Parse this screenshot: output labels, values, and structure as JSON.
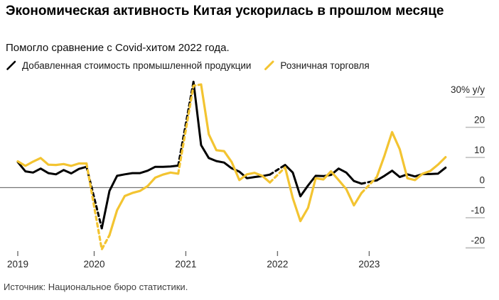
{
  "title": "Экономическая активность Китая ускорилась в прошлом месяце",
  "subtitle": "Помогло сравнение с Covid-хитом 2022 года.",
  "source": "Источник: Национальное бюро статистики.",
  "legend": [
    {
      "label": "Добавленная стоимость промышленной продукции",
      "color": "#000000"
    },
    {
      "label": "Розничная торговля",
      "color": "#F3C431"
    }
  ],
  "y_axis": {
    "top_label": "30% y/y",
    "ticks": [
      30,
      20,
      10,
      0,
      -10,
      -20
    ]
  },
  "x_axis": {
    "years": [
      2019,
      2020,
      2021,
      2022,
      2023
    ]
  },
  "colors": {
    "zero_line": "#757575",
    "tick_line": "#bbbbbb",
    "x_tick": "#6e6e6e",
    "axis_text": "#262626"
  },
  "chart_data": {
    "type": "line",
    "title": "Экономическая активность Китая ускорилась в прошлом месяце",
    "ylabel": "% y/y",
    "ylim": [
      -25,
      36
    ],
    "x_range": [
      "2019-03",
      "2023-11"
    ],
    "grid": "zero-line only, right-edge tick dashes",
    "legend_position": "top-left",
    "note_style": "segments bridging the missing January (combined Jan–Feb data) are dashed",
    "series": [
      {
        "name": "Добавленная стоимость промышленной продукции",
        "color": "#000000",
        "points": [
          [
            "2019-03",
            8.5
          ],
          [
            "2019-04",
            5.4
          ],
          [
            "2019-05",
            5.0
          ],
          [
            "2019-06",
            6.3
          ],
          [
            "2019-07",
            4.8
          ],
          [
            "2019-08",
            4.4
          ],
          [
            "2019-09",
            5.8
          ],
          [
            "2019-10",
            4.7
          ],
          [
            "2019-11",
            6.2
          ],
          [
            "2019-12",
            6.9
          ],
          [
            "2020-02",
            -13.5
          ],
          [
            "2020-03",
            -1.1
          ],
          [
            "2020-04",
            3.9
          ],
          [
            "2020-05",
            4.4
          ],
          [
            "2020-06",
            4.8
          ],
          [
            "2020-07",
            4.8
          ],
          [
            "2020-08",
            5.6
          ],
          [
            "2020-09",
            6.9
          ],
          [
            "2020-10",
            6.9
          ],
          [
            "2020-11",
            7.0
          ],
          [
            "2020-12",
            7.3
          ],
          [
            "2021-02",
            35.1
          ],
          [
            "2021-03",
            14.1
          ],
          [
            "2021-04",
            9.8
          ],
          [
            "2021-05",
            8.8
          ],
          [
            "2021-06",
            8.3
          ],
          [
            "2021-07",
            6.4
          ],
          [
            "2021-08",
            5.3
          ],
          [
            "2021-09",
            3.1
          ],
          [
            "2021-10",
            3.5
          ],
          [
            "2021-11",
            3.8
          ],
          [
            "2021-12",
            4.3
          ],
          [
            "2022-02",
            7.5
          ],
          [
            "2022-03",
            5.0
          ],
          [
            "2022-04",
            -2.9
          ],
          [
            "2022-05",
            0.7
          ],
          [
            "2022-06",
            3.9
          ],
          [
            "2022-07",
            3.8
          ],
          [
            "2022-08",
            4.2
          ],
          [
            "2022-09",
            6.3
          ],
          [
            "2022-10",
            5.0
          ],
          [
            "2022-11",
            2.2
          ],
          [
            "2022-12",
            1.3
          ],
          [
            "2023-02",
            2.4
          ],
          [
            "2023-03",
            3.9
          ],
          [
            "2023-04",
            5.6
          ],
          [
            "2023-05",
            3.5
          ],
          [
            "2023-06",
            4.4
          ],
          [
            "2023-07",
            3.7
          ],
          [
            "2023-08",
            4.5
          ],
          [
            "2023-09",
            4.5
          ],
          [
            "2023-10",
            4.6
          ],
          [
            "2023-11",
            6.6
          ]
        ],
        "extra_dashed": []
      },
      {
        "name": "Розничная торговля",
        "color": "#F3C431",
        "points": [
          [
            "2019-03",
            8.7
          ],
          [
            "2019-04",
            7.2
          ],
          [
            "2019-05",
            8.6
          ],
          [
            "2019-06",
            9.8
          ],
          [
            "2019-07",
            7.6
          ],
          [
            "2019-08",
            7.5
          ],
          [
            "2019-09",
            7.8
          ],
          [
            "2019-10",
            7.2
          ],
          [
            "2019-11",
            8.0
          ],
          [
            "2019-12",
            8.0
          ],
          [
            "2020-02",
            -20.5
          ],
          [
            "2020-03",
            -15.8
          ],
          [
            "2020-04",
            -7.5
          ],
          [
            "2020-05",
            -2.8
          ],
          [
            "2020-06",
            -1.8
          ],
          [
            "2020-07",
            -1.1
          ],
          [
            "2020-08",
            0.5
          ],
          [
            "2020-09",
            3.3
          ],
          [
            "2020-10",
            4.3
          ],
          [
            "2020-11",
            5.0
          ],
          [
            "2020-12",
            4.6
          ],
          [
            "2021-02",
            33.8
          ],
          [
            "2021-03",
            34.2
          ],
          [
            "2021-04",
            17.7
          ],
          [
            "2021-05",
            12.4
          ],
          [
            "2021-06",
            12.1
          ],
          [
            "2021-07",
            8.5
          ],
          [
            "2021-08",
            2.5
          ],
          [
            "2021-09",
            4.4
          ],
          [
            "2021-10",
            4.9
          ],
          [
            "2021-11",
            3.9
          ],
          [
            "2021-12",
            1.7
          ],
          [
            "2022-02",
            6.7
          ],
          [
            "2022-03",
            -3.5
          ],
          [
            "2022-04",
            -11.1
          ],
          [
            "2022-05",
            -6.7
          ],
          [
            "2022-06",
            3.1
          ],
          [
            "2022-07",
            2.7
          ],
          [
            "2022-08",
            5.4
          ],
          [
            "2022-09",
            2.5
          ],
          [
            "2022-10",
            -0.5
          ],
          [
            "2022-11",
            -5.9
          ],
          [
            "2022-12",
            -1.8
          ],
          [
            "2023-02",
            3.5
          ],
          [
            "2023-03",
            10.6
          ],
          [
            "2023-04",
            18.4
          ],
          [
            "2023-05",
            12.7
          ],
          [
            "2023-06",
            3.1
          ],
          [
            "2023-07",
            2.5
          ],
          [
            "2023-08",
            4.6
          ],
          [
            "2023-09",
            5.5
          ],
          [
            "2023-10",
            7.6
          ],
          [
            "2023-11",
            10.1
          ]
        ],
        "extra_dashed": [
          [
            "2020-02",
            "2020-03"
          ],
          [
            "2021-02",
            "2021-03"
          ]
        ]
      }
    ]
  }
}
